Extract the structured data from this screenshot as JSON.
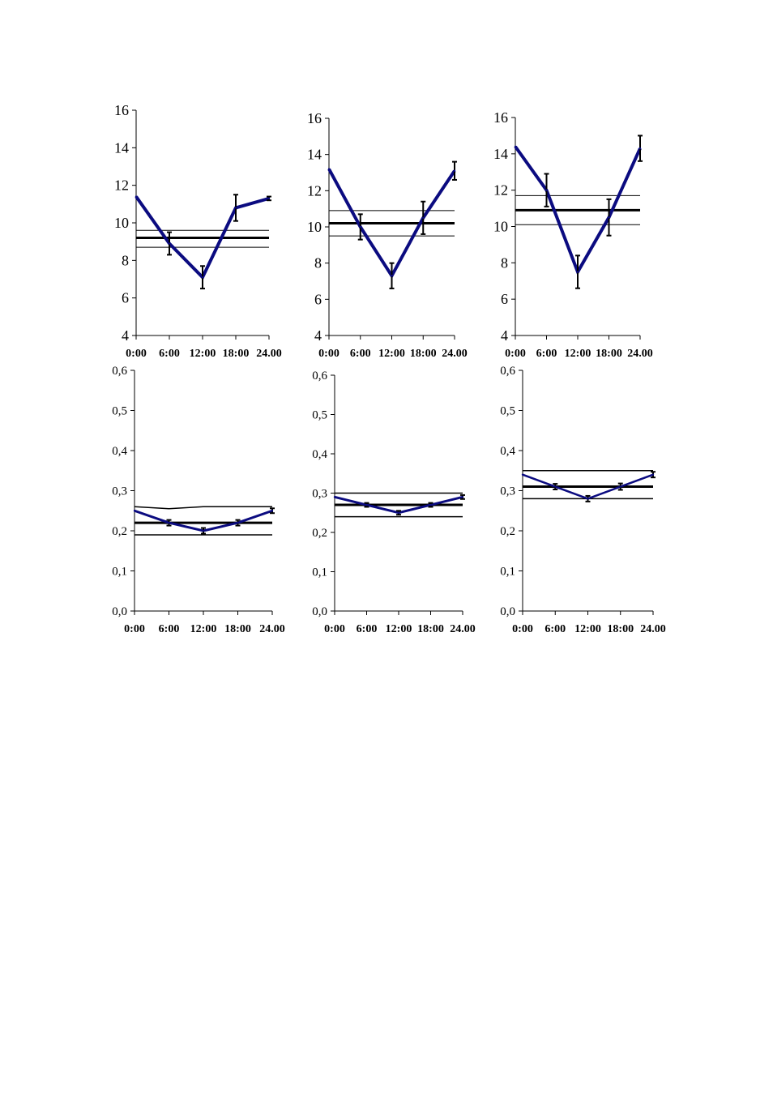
{
  "colors": {
    "series": "#0b0b80",
    "mean": "#000000",
    "band": "#000000",
    "axis": "#000000"
  },
  "chart_data": [
    {
      "type": "line",
      "x": [
        "0:00",
        "6:00",
        "12:00",
        "18:00",
        "24.00"
      ],
      "ylim": [
        4,
        16
      ],
      "yticks": [
        4,
        6,
        8,
        10,
        12,
        14,
        16
      ],
      "ytick_labels": [
        "4",
        "6",
        "8",
        "10",
        "12",
        "14",
        "16"
      ],
      "series": [
        {
          "values": [
            11.4,
            8.9,
            7.1,
            10.8,
            11.3
          ],
          "errors": [
            0,
            0.6,
            0.6,
            0.7,
            0.1
          ]
        }
      ],
      "mean": 9.2,
      "band": [
        [
          8.7,
          8.7
        ],
        [
          9.6,
          9.6
        ]
      ],
      "grid": false
    },
    {
      "type": "line",
      "x": [
        "0:00",
        "6:00",
        "12:00",
        "18:00",
        "24.00"
      ],
      "ylim": [
        4,
        16
      ],
      "yticks": [
        4,
        6,
        8,
        10,
        12,
        14,
        16
      ],
      "ytick_labels": [
        "4",
        "6",
        "8",
        "10",
        "12",
        "14",
        "16"
      ],
      "series": [
        {
          "values": [
            13.2,
            10.0,
            7.3,
            10.5,
            13.1
          ],
          "errors": [
            0,
            0.7,
            0.7,
            0.9,
            0.5
          ]
        }
      ],
      "mean": 10.2,
      "band": [
        [
          9.5,
          9.5
        ],
        [
          10.9,
          10.9
        ]
      ],
      "grid": false
    },
    {
      "type": "line",
      "x": [
        "0:00",
        "6:00",
        "12:00",
        "18:00",
        "24.00"
      ],
      "ylim": [
        4,
        16
      ],
      "yticks": [
        4,
        6,
        8,
        10,
        12,
        14,
        16
      ],
      "ytick_labels": [
        "4",
        "6",
        "8",
        "10",
        "12",
        "14",
        "16"
      ],
      "series": [
        {
          "values": [
            14.4,
            12.0,
            7.5,
            10.5,
            14.3
          ],
          "errors": [
            0,
            0.9,
            0.9,
            1.0,
            0.7
          ]
        }
      ],
      "mean": 10.9,
      "band": [
        [
          10.1,
          10.1
        ],
        [
          11.7,
          11.7
        ]
      ],
      "grid": false
    },
    {
      "type": "line",
      "x": [
        "0:00",
        "6:00",
        "12:00",
        "18:00",
        "24.00"
      ],
      "ylim": [
        0,
        0.6
      ],
      "yticks": [
        0,
        0.1,
        0.2,
        0.3,
        0.4,
        0.5,
        0.6
      ],
      "ytick_labels": [
        "0,0",
        "0,1",
        "0,2",
        "0,3",
        "0,4",
        "0,5",
        "0,6"
      ],
      "series": [
        {
          "values": [
            0.25,
            0.22,
            0.2,
            0.22,
            0.25
          ],
          "errors": [
            0,
            0.007,
            0.007,
            0.007,
            0.006
          ]
        }
      ],
      "mean": 0.22,
      "band": [
        [
          0.19,
          0.19
        ],
        [
          0.26,
          0.255,
          0.26,
          0.26,
          0.26
        ]
      ],
      "grid": false
    },
    {
      "type": "line",
      "x": [
        "0:00",
        "6:00",
        "12:00",
        "18:00",
        "24.00"
      ],
      "ylim": [
        0,
        0.6
      ],
      "yticks": [
        0,
        0.1,
        0.2,
        0.3,
        0.4,
        0.5,
        0.6
      ],
      "ytick_labels": [
        "0,0",
        "0,1",
        "0,2",
        "0,3",
        "0,4",
        "0,5",
        "0,6"
      ],
      "series": [
        {
          "values": [
            0.29,
            0.27,
            0.25,
            0.27,
            0.29
          ],
          "errors": [
            0,
            0.005,
            0.005,
            0.005,
            0.005
          ]
        }
      ],
      "mean": 0.27,
      "band": [
        [
          0.24,
          0.24
        ],
        [
          0.3,
          0.3
        ]
      ],
      "grid": false
    },
    {
      "type": "line",
      "x": [
        "0:00",
        "6:00",
        "12:00",
        "18:00",
        "24.00"
      ],
      "ylim": [
        0,
        0.6
      ],
      "yticks": [
        0,
        0.1,
        0.2,
        0.3,
        0.4,
        0.5,
        0.6
      ],
      "ytick_labels": [
        "0,0",
        "0,1",
        "0,2",
        "0,3",
        "0,4",
        "0,5",
        "0,6"
      ],
      "series": [
        {
          "values": [
            0.34,
            0.31,
            0.28,
            0.31,
            0.34
          ],
          "errors": [
            0,
            0.007,
            0.007,
            0.008,
            0.007
          ]
        }
      ],
      "mean": 0.31,
      "band": [
        [
          0.28,
          0.28
        ],
        [
          0.35,
          0.35
        ]
      ],
      "grid": false
    }
  ]
}
